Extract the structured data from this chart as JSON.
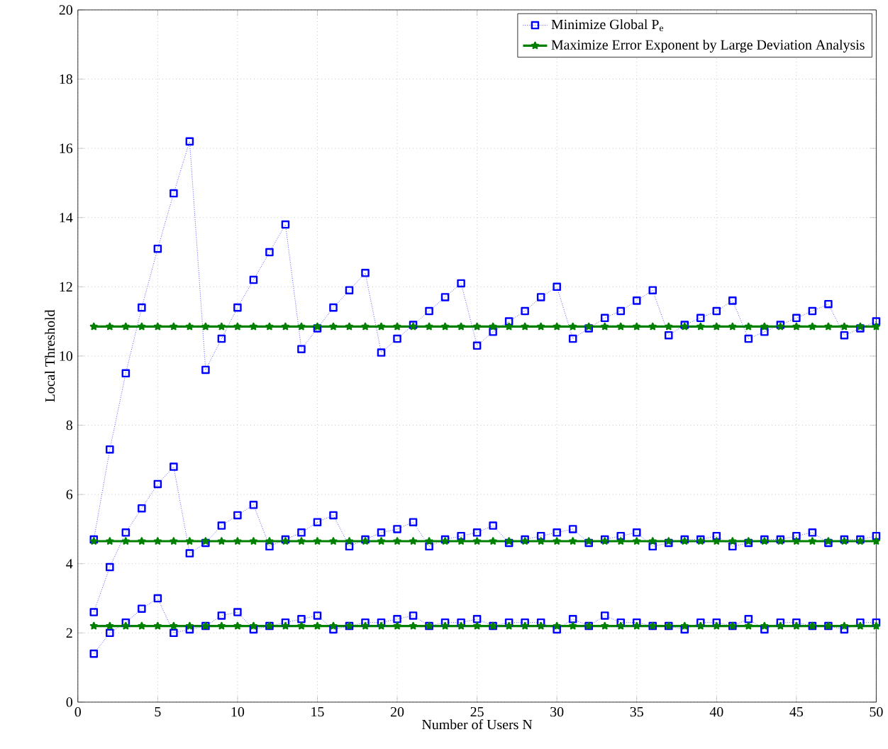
{
  "chart_data": {
    "type": "line",
    "xlabel": "Number of Users N",
    "ylabel": "Local Threshold",
    "x": [
      1,
      2,
      3,
      4,
      5,
      6,
      7,
      8,
      9,
      10,
      11,
      12,
      13,
      14,
      15,
      16,
      17,
      18,
      19,
      20,
      21,
      22,
      23,
      24,
      25,
      26,
      27,
      28,
      29,
      30,
      31,
      32,
      33,
      34,
      35,
      36,
      37,
      38,
      39,
      40,
      41,
      42,
      43,
      44,
      45,
      46,
      47,
      48,
      49,
      50
    ],
    "xlim": [
      0,
      50
    ],
    "ylim": [
      0,
      20
    ],
    "xticks": [
      0,
      5,
      10,
      15,
      20,
      25,
      30,
      35,
      40,
      45,
      50
    ],
    "yticks": [
      0,
      2,
      4,
      6,
      8,
      10,
      12,
      14,
      16,
      18,
      20
    ],
    "grid": true,
    "legend": "top right",
    "series": [
      {
        "name": "Minimize Global P$_{e}$",
        "color": "#0000ff",
        "marker": "square",
        "line_style": "dotted",
        "values": [
          4.7,
          7.3,
          9.5,
          11.4,
          13.1,
          14.7,
          16.2,
          9.6,
          10.5,
          11.4,
          12.2,
          13.0,
          13.8,
          10.2,
          10.8,
          11.4,
          11.9,
          12.4,
          10.1,
          10.5,
          10.9,
          11.3,
          11.7,
          12.1,
          10.3,
          10.7,
          11.0,
          11.3,
          11.7,
          12.0,
          10.5,
          10.8,
          11.1,
          11.3,
          11.6,
          11.9,
          10.6,
          10.9,
          11.1,
          11.3,
          11.6,
          10.5,
          10.7,
          10.9,
          11.1,
          11.3,
          11.5,
          10.6,
          10.8,
          11.0
        ]
      },
      {
        "color": "#0000ff",
        "marker": "square",
        "line_style": "dotted",
        "values": [
          2.6,
          3.9,
          4.9,
          5.6,
          6.3,
          6.8,
          4.3,
          4.6,
          5.1,
          5.4,
          5.7,
          4.5,
          4.7,
          4.9,
          5.2,
          5.4,
          4.5,
          4.7,
          4.9,
          5.0,
          5.2,
          4.5,
          4.7,
          4.8,
          4.9,
          5.1,
          4.6,
          4.7,
          4.8,
          4.9,
          5.0,
          4.6,
          4.7,
          4.8,
          4.9,
          4.5,
          4.6,
          4.7,
          4.7,
          4.8,
          4.5,
          4.6,
          4.7,
          4.7,
          4.8,
          4.9,
          4.6,
          4.7,
          4.7,
          4.8
        ]
      },
      {
        "color": "#0000ff",
        "marker": "square",
        "line_style": "dotted",
        "values": [
          1.4,
          2.0,
          2.3,
          2.7,
          3.0,
          2.0,
          2.1,
          2.2,
          2.5,
          2.6,
          2.1,
          2.2,
          2.3,
          2.4,
          2.5,
          2.1,
          2.2,
          2.3,
          2.3,
          2.4,
          2.5,
          2.2,
          2.3,
          2.3,
          2.4,
          2.2,
          2.3,
          2.3,
          2.3,
          2.1,
          2.4,
          2.2,
          2.5,
          2.3,
          2.3,
          2.2,
          2.2,
          2.1,
          2.3,
          2.3,
          2.2,
          2.4,
          2.1,
          2.3,
          2.3,
          2.2,
          2.2,
          2.1,
          2.3,
          2.3
        ]
      },
      {
        "name": "Maximize Error Exponent by Large Deviation Analysis",
        "color": "#008000",
        "marker": "star",
        "line_style": "solid",
        "values": [
          10.85,
          10.85,
          10.85,
          10.85,
          10.85,
          10.85,
          10.85,
          10.85,
          10.85,
          10.85,
          10.85,
          10.85,
          10.85,
          10.85,
          10.85,
          10.85,
          10.85,
          10.85,
          10.85,
          10.85,
          10.85,
          10.85,
          10.85,
          10.85,
          10.85,
          10.85,
          10.85,
          10.85,
          10.85,
          10.85,
          10.85,
          10.85,
          10.85,
          10.85,
          10.85,
          10.85,
          10.85,
          10.85,
          10.85,
          10.85,
          10.85,
          10.85,
          10.85,
          10.85,
          10.85,
          10.85,
          10.85,
          10.85,
          10.85,
          10.85
        ]
      },
      {
        "color": "#008000",
        "marker": "star",
        "line_style": "solid",
        "values": [
          4.65,
          4.65,
          4.65,
          4.65,
          4.65,
          4.65,
          4.65,
          4.65,
          4.65,
          4.65,
          4.65,
          4.65,
          4.65,
          4.65,
          4.65,
          4.65,
          4.65,
          4.65,
          4.65,
          4.65,
          4.65,
          4.65,
          4.65,
          4.65,
          4.65,
          4.65,
          4.65,
          4.65,
          4.65,
          4.65,
          4.65,
          4.65,
          4.65,
          4.65,
          4.65,
          4.65,
          4.65,
          4.65,
          4.65,
          4.65,
          4.65,
          4.65,
          4.65,
          4.65,
          4.65,
          4.65,
          4.65,
          4.65,
          4.65,
          4.65
        ]
      },
      {
        "color": "#008000",
        "marker": "star",
        "line_style": "solid",
        "values": [
          2.2,
          2.2,
          2.2,
          2.2,
          2.2,
          2.2,
          2.2,
          2.2,
          2.2,
          2.2,
          2.2,
          2.2,
          2.2,
          2.2,
          2.2,
          2.2,
          2.2,
          2.2,
          2.2,
          2.2,
          2.2,
          2.2,
          2.2,
          2.2,
          2.2,
          2.2,
          2.2,
          2.2,
          2.2,
          2.2,
          2.2,
          2.2,
          2.2,
          2.2,
          2.2,
          2.2,
          2.2,
          2.2,
          2.2,
          2.2,
          2.2,
          2.2,
          2.2,
          2.2,
          2.2,
          2.2,
          2.2,
          2.2,
          2.2,
          2.2
        ]
      }
    ]
  }
}
